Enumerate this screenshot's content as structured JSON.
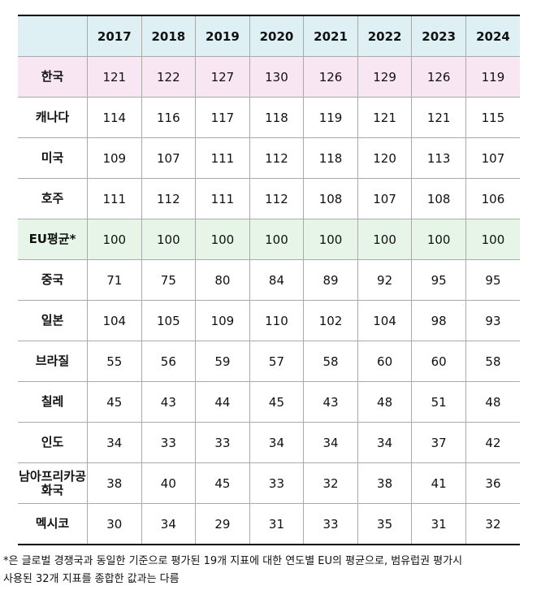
{
  "table": {
    "columns": [
      "2017",
      "2018",
      "2019",
      "2020",
      "2021",
      "2022",
      "2023",
      "2024"
    ],
    "rows": [
      {
        "label": "한국",
        "values": [
          121,
          122,
          127,
          130,
          126,
          129,
          126,
          119
        ]
      },
      {
        "label": "캐나다",
        "values": [
          114,
          116,
          117,
          118,
          119,
          121,
          121,
          115
        ]
      },
      {
        "label": "미국",
        "values": [
          109,
          107,
          111,
          112,
          118,
          120,
          113,
          107
        ]
      },
      {
        "label": "호주",
        "values": [
          111,
          112,
          111,
          112,
          108,
          107,
          108,
          106
        ]
      },
      {
        "label": "EU평균*",
        "values": [
          100,
          100,
          100,
          100,
          100,
          100,
          100,
          100
        ]
      },
      {
        "label": "중국",
        "values": [
          71,
          75,
          80,
          84,
          89,
          92,
          95,
          95
        ]
      },
      {
        "label": "일본",
        "values": [
          104,
          105,
          109,
          110,
          102,
          104,
          98,
          93
        ]
      },
      {
        "label": "브라질",
        "values": [
          55,
          56,
          59,
          57,
          58,
          60,
          60,
          58
        ]
      },
      {
        "label": "칠레",
        "values": [
          45,
          43,
          44,
          45,
          43,
          48,
          51,
          48
        ]
      },
      {
        "label": "인도",
        "values": [
          34,
          33,
          33,
          34,
          34,
          34,
          37,
          42
        ]
      },
      {
        "label": "남아프리카공화국",
        "values": [
          38,
          40,
          45,
          33,
          32,
          38,
          41,
          36
        ]
      },
      {
        "label": "멕시코",
        "values": [
          30,
          34,
          29,
          31,
          33,
          35,
          31,
          32
        ]
      }
    ]
  },
  "footnote": [
    "*은 글로벌 경쟁국과 동일한 기준으로 평가된 19개 지표에 대한 연도별 EU의 평균으로, 범유럽권 평가시",
    "사용된 32개 지표를 종합한 값과는 다름"
  ]
}
